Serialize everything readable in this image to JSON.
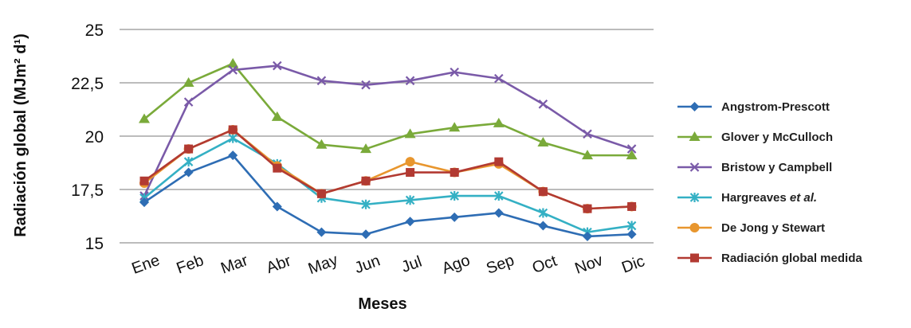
{
  "chart_data": {
    "type": "line",
    "xlabel": "Meses",
    "ylabel": "Radiación global (MJm² d¹)",
    "ylim": [
      15,
      25
    ],
    "yticks": [
      "15",
      "17,5",
      "20",
      "22,5",
      "25"
    ],
    "ytick_values": [
      15,
      17.5,
      20,
      22.5,
      25
    ],
    "grid": "horizontal",
    "legend_position": "right",
    "categories": [
      "Ene",
      "Feb",
      "Mar",
      "Abr",
      "May",
      "Jun",
      "Jul",
      "Ago",
      "Sep",
      "Oct",
      "Nov",
      "Dic"
    ],
    "series": [
      {
        "name": "Angstrom-Prescott",
        "color": "#2e6db4",
        "marker": "diamond",
        "values": [
          16.9,
          18.3,
          19.1,
          16.7,
          15.5,
          15.4,
          16.0,
          16.2,
          16.4,
          15.8,
          15.3,
          15.4
        ]
      },
      {
        "name": "Glover y McCulloch",
        "color": "#7aaa3a",
        "marker": "triangle",
        "values": [
          20.8,
          22.5,
          23.4,
          20.9,
          19.6,
          19.4,
          20.1,
          20.4,
          20.6,
          19.7,
          19.1,
          19.1
        ]
      },
      {
        "name": "Bristow y Campbell",
        "color": "#7a5aa8",
        "marker": "x",
        "values": [
          17.2,
          21.6,
          23.1,
          23.3,
          22.6,
          22.4,
          22.6,
          23.0,
          22.7,
          21.5,
          20.1,
          19.4
        ]
      },
      {
        "name": "Hargreaves et al.",
        "color": "#34b0c4",
        "marker": "star",
        "values": [
          17.1,
          18.8,
          19.9,
          18.7,
          17.1,
          16.8,
          17.0,
          17.2,
          17.2,
          16.4,
          15.5,
          15.8
        ]
      },
      {
        "name": "De Jong y Stewart",
        "color": "#e8962e",
        "marker": "circle",
        "values": [
          17.8,
          19.4,
          20.3,
          18.6,
          17.3,
          17.9,
          18.8,
          18.3,
          18.7,
          17.4,
          16.6,
          16.7
        ]
      },
      {
        "name": "Radiación global medida",
        "color": "#b23a32",
        "marker": "square",
        "values": [
          17.9,
          19.4,
          20.3,
          18.5,
          17.3,
          17.9,
          18.3,
          18.3,
          18.8,
          17.4,
          16.6,
          16.7
        ]
      }
    ]
  }
}
